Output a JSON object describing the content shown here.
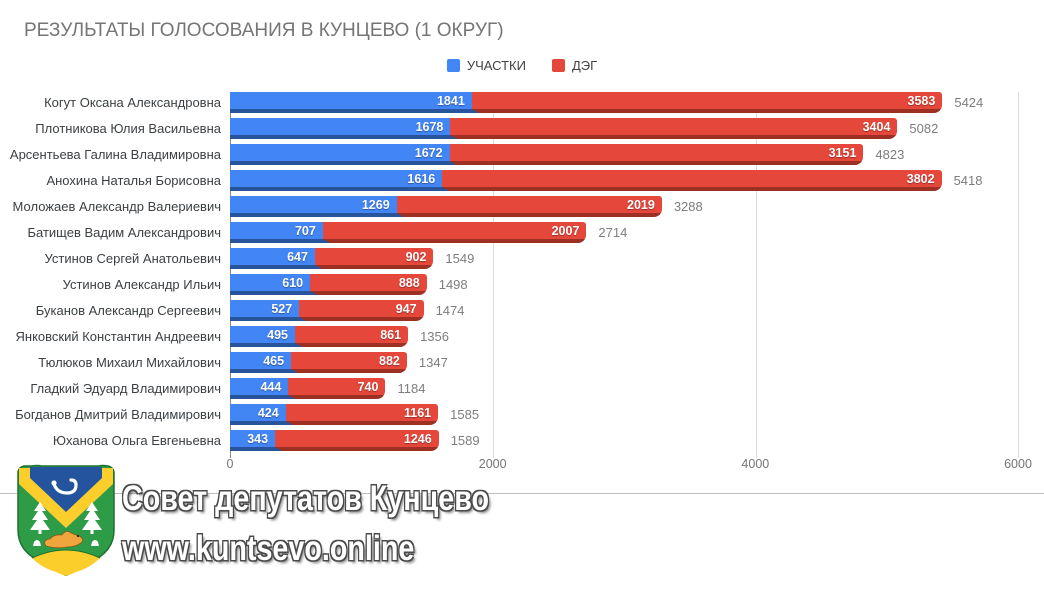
{
  "title": "РЕЗУЛЬТАТЫ ГОЛОСОВАНИЯ В КУНЦЕВО (1 ОКРУГ)",
  "legend": {
    "items": [
      {
        "label": "УЧАСТКИ",
        "color": "#4285F4"
      },
      {
        "label": "ДЭГ",
        "color": "#E5473B"
      }
    ]
  },
  "colors": {
    "blue": "#4285F4",
    "blue_dark": "#27549B",
    "red": "#E5473B",
    "red_dark": "#9E2F23",
    "title_gray": "#757575",
    "label_gray": "#3c4043",
    "gridline": "#dcdcdc"
  },
  "chart_data": {
    "type": "bar",
    "orientation": "horizontal",
    "stacked": true,
    "title": "РЕЗУЛЬТАТЫ ГОЛОСОВАНИЯ В КУНЦЕВО (1 ОКРУГ)",
    "legend_position": "top",
    "grid": true,
    "xlim": [
      0,
      6000
    ],
    "x_ticks": [
      "0",
      "2000",
      "4000",
      "6000"
    ],
    "x_tick_positions_pct": [
      0,
      33.333,
      66.667,
      100
    ],
    "categories": [
      "Когут Оксана Александровна",
      "Плотникова Юлия Васильевна",
      "Арсентьева Галина Владимировна",
      "Анохина Наталья Борисовна",
      "Моложаев Александр Валериевич",
      "Батищев Вадим Александрович",
      "Устинов Сергей Анатольевич",
      "Устинов Александр Ильич",
      "Буканов Александр Сергеевич",
      "Янковский Константин Андреевич",
      "Тюлюков Михаил Михайлович",
      "Гладкий Эдуард Владимирович",
      "Богданов Дмитрий Владимирович",
      "Юханова Ольга Евгеньевна"
    ],
    "series": [
      {
        "name": "УЧАСТКИ",
        "color": "#4285F4",
        "values": [
          1841,
          1678,
          1672,
          1616,
          1269,
          707,
          647,
          610,
          527,
          495,
          465,
          444,
          424,
          343
        ]
      },
      {
        "name": "ДЭГ",
        "color": "#E5473B",
        "values": [
          3583,
          3404,
          3151,
          3802,
          2019,
          2007,
          902,
          888,
          947,
          861,
          882,
          740,
          1161,
          1246
        ]
      }
    ],
    "totals": [
      5424,
      5082,
      4823,
      5418,
      3288,
      2714,
      1549,
      1498,
      1474,
      1356,
      1347,
      1184,
      1585,
      1589
    ]
  },
  "branding": {
    "line1": "Совет депутатов Кунцево",
    "line2": "www.kuntsevo.online",
    "logo": "kuntsevo-coat-of-arms"
  }
}
